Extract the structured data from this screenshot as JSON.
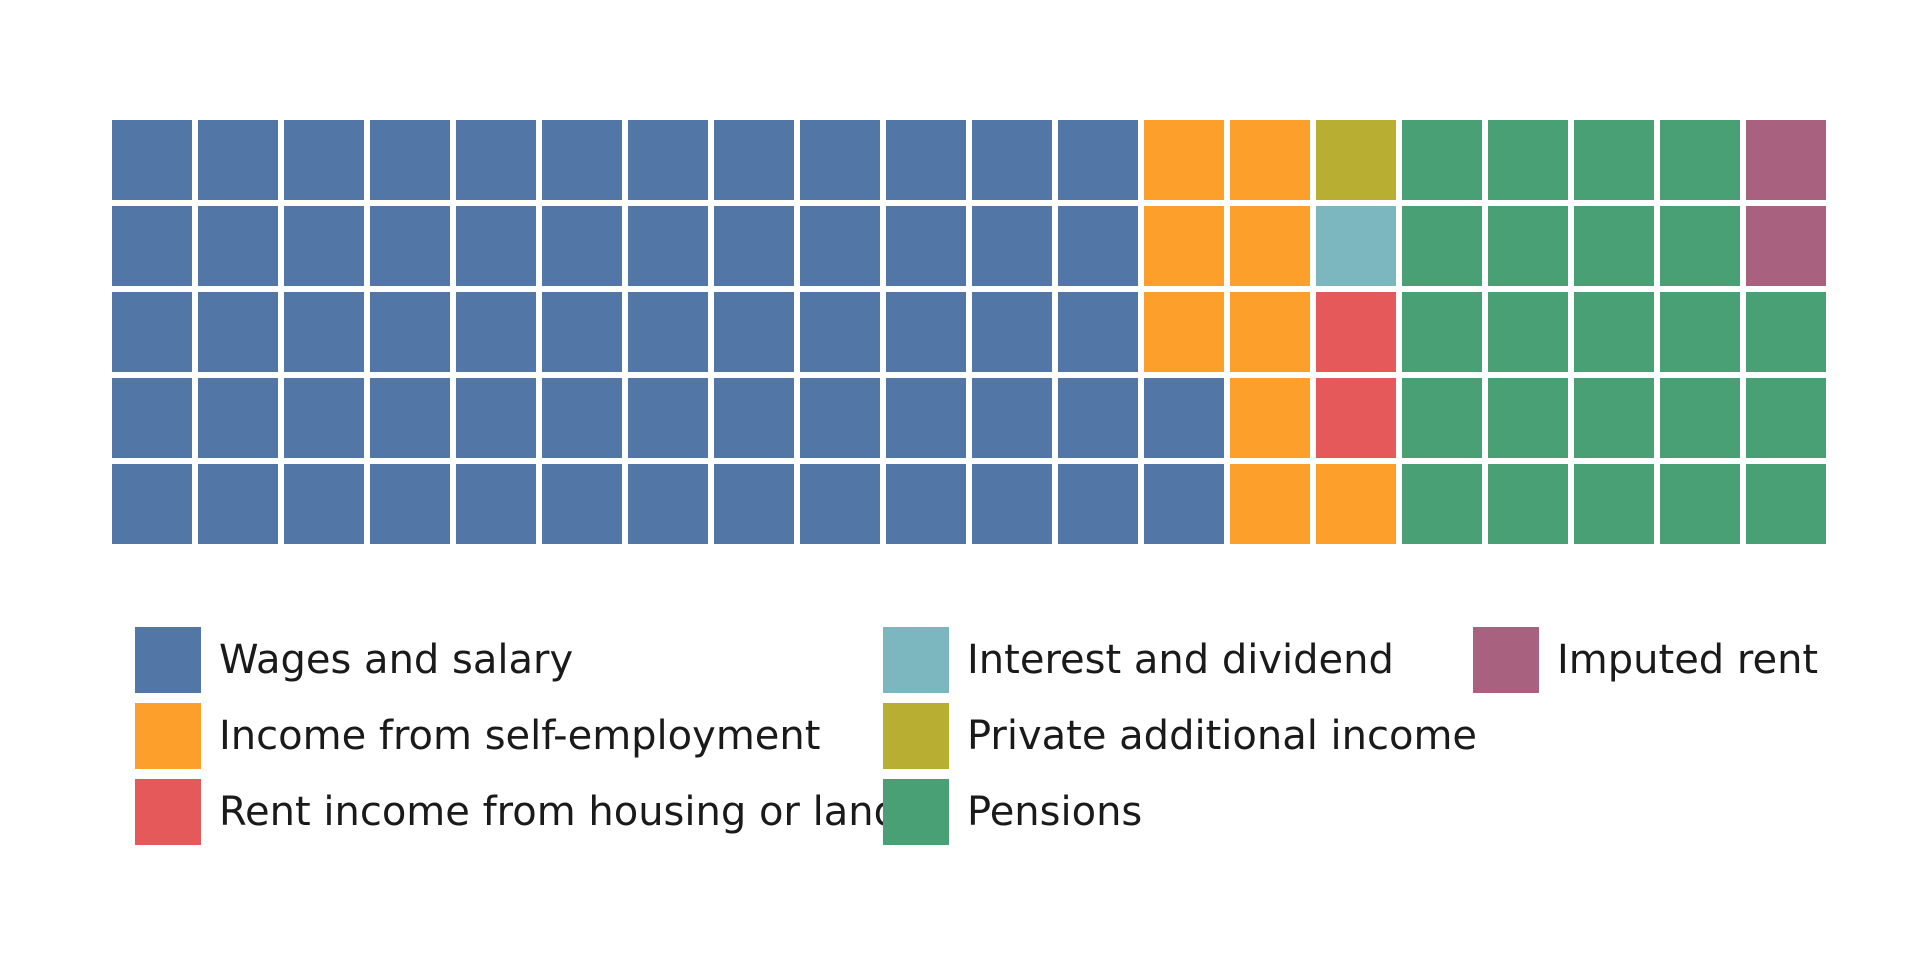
{
  "chart_data": {
    "type": "waffle",
    "title": "",
    "grid": {
      "rows": 5,
      "columns": 20
    },
    "categories": [
      {
        "key": "wages",
        "label": "Wages and salary",
        "value": 62,
        "color": "#5276a5"
      },
      {
        "key": "self_employment",
        "label": "Income from self-employment",
        "value": 9,
        "color": "#fc9f2b"
      },
      {
        "key": "rent_income",
        "label": "Rent income from housing or land",
        "value": 2,
        "color": "#e5595a"
      },
      {
        "key": "interest",
        "label": "Interest and dividend",
        "value": 1,
        "color": "#7cb6be"
      },
      {
        "key": "private_additional",
        "label": "Private additional income",
        "value": 1,
        "color": "#b8af32"
      },
      {
        "key": "pensions",
        "label": "Pensions",
        "value": 23,
        "color": "#49a074"
      },
      {
        "key": "imputed_rent",
        "label": "Imputed rent",
        "value": 2,
        "color": "#a8617f"
      }
    ],
    "cells": [
      [
        "wages",
        "wages",
        "wages",
        "wages",
        "wages",
        "wages",
        "wages",
        "wages",
        "wages",
        "wages",
        "wages",
        "wages",
        "self_employment",
        "self_employment",
        "private_additional",
        "pensions",
        "pensions",
        "pensions",
        "pensions",
        "imputed_rent"
      ],
      [
        "wages",
        "wages",
        "wages",
        "wages",
        "wages",
        "wages",
        "wages",
        "wages",
        "wages",
        "wages",
        "wages",
        "wages",
        "self_employment",
        "self_employment",
        "interest",
        "pensions",
        "pensions",
        "pensions",
        "pensions",
        "imputed_rent"
      ],
      [
        "wages",
        "wages",
        "wages",
        "wages",
        "wages",
        "wages",
        "wages",
        "wages",
        "wages",
        "wages",
        "wages",
        "wages",
        "self_employment",
        "self_employment",
        "rent_income",
        "pensions",
        "pensions",
        "pensions",
        "pensions",
        "pensions"
      ],
      [
        "wages",
        "wages",
        "wages",
        "wages",
        "wages",
        "wages",
        "wages",
        "wages",
        "wages",
        "wages",
        "wages",
        "wages",
        "wages",
        "self_employment",
        "rent_income",
        "pensions",
        "pensions",
        "pensions",
        "pensions",
        "pensions"
      ],
      [
        "wages",
        "wages",
        "wages",
        "wages",
        "wages",
        "wages",
        "wages",
        "wages",
        "wages",
        "wages",
        "wages",
        "wages",
        "wages",
        "self_employment",
        "self_employment",
        "pensions",
        "pensions",
        "pensions",
        "pensions",
        "pensions"
      ]
    ],
    "legend": {
      "placement": "bottom",
      "columns": [
        [
          "wages",
          "self_employment",
          "rent_income"
        ],
        [
          "interest",
          "private_additional",
          "pensions"
        ],
        [
          "imputed_rent"
        ]
      ]
    }
  }
}
